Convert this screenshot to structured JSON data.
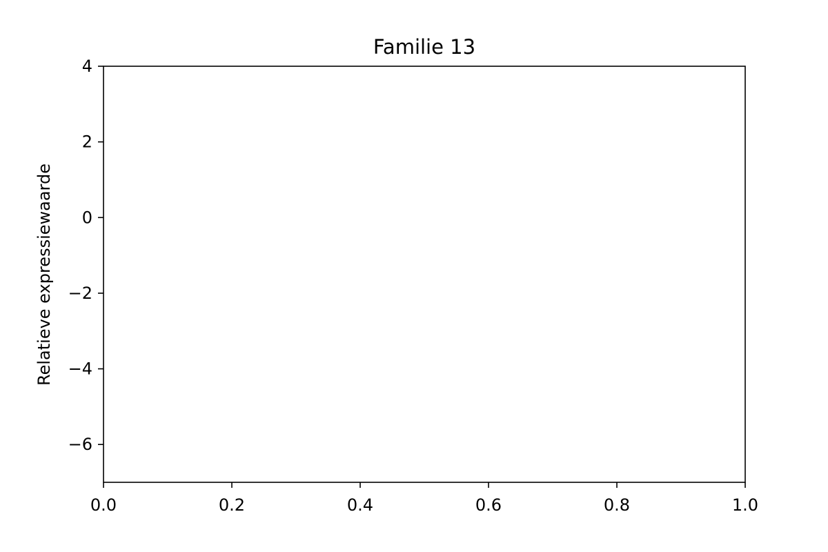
{
  "chart_data": {
    "type": "line",
    "title": "Familie 13",
    "xlabel": "",
    "ylabel": "Relatieve expressiewaarde",
    "xlim": [
      0.0,
      1.0
    ],
    "ylim": [
      -7,
      4
    ],
    "x_ticks": [
      {
        "value": 0.0,
        "label": "0.0"
      },
      {
        "value": 0.2,
        "label": "0.2"
      },
      {
        "value": 0.4,
        "label": "0.4"
      },
      {
        "value": 0.6,
        "label": "0.6"
      },
      {
        "value": 0.8,
        "label": "0.8"
      },
      {
        "value": 1.0,
        "label": "1.0"
      }
    ],
    "y_ticks": [
      {
        "value": 4,
        "label": "4"
      },
      {
        "value": 2,
        "label": "2"
      },
      {
        "value": 0,
        "label": "0"
      },
      {
        "value": -2,
        "label": "−2"
      },
      {
        "value": -4,
        "label": "−4"
      },
      {
        "value": -6,
        "label": "−6"
      }
    ],
    "series": [],
    "grid": false,
    "legend": false
  }
}
